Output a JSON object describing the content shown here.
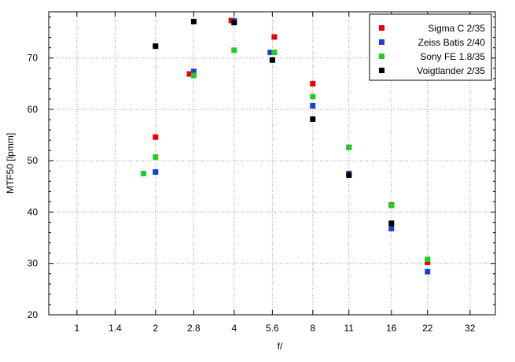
{
  "chart_data": {
    "type": "scatter",
    "title": "",
    "xlabel": "f/",
    "ylabel": "MTF50 [lpmm]",
    "x_scale": "log2",
    "xlim": [
      0.78,
      40
    ],
    "ylim": [
      20,
      79
    ],
    "x_ticks": [
      1,
      1.4,
      2,
      2.8,
      4,
      5.6,
      8,
      11,
      16,
      22,
      32
    ],
    "x_tick_labels": [
      "1",
      "1.4",
      "2",
      "2.8",
      "4",
      "5.6",
      "8",
      "11",
      "16",
      "22",
      "32"
    ],
    "y_ticks": [
      20,
      30,
      40,
      50,
      60,
      70
    ],
    "y_tick_labels": [
      "20",
      "30",
      "40",
      "50",
      "60",
      "70"
    ],
    "grid": true,
    "legend_position": "top-right",
    "series": [
      {
        "name": "Sigma C 2/35",
        "color": "#ee0000",
        "points": [
          [
            2,
            54.6
          ],
          [
            2.7,
            66.9
          ],
          [
            3.9,
            77.3
          ],
          [
            5.7,
            74.1
          ],
          [
            8,
            65.0
          ],
          [
            11,
            52.6
          ],
          [
            16,
            41.4
          ],
          [
            22,
            30.2
          ]
        ]
      },
      {
        "name": "Zeiss Batis 2/40",
        "color": "#1a3fd6",
        "points": [
          [
            2,
            47.8
          ],
          [
            2.8,
            67.4
          ],
          [
            4,
            77.2
          ],
          [
            5.5,
            71.1
          ],
          [
            8,
            60.7
          ],
          [
            11,
            47.5
          ],
          [
            16,
            36.8
          ],
          [
            22,
            28.4
          ]
        ]
      },
      {
        "name": "Sony FE 1.8/35",
        "color": "#22cc22",
        "points": [
          [
            1.8,
            47.5
          ],
          [
            2,
            50.7
          ],
          [
            2.8,
            66.6
          ],
          [
            4,
            71.5
          ],
          [
            5.7,
            71.1
          ],
          [
            8,
            62.5
          ],
          [
            11,
            52.6
          ],
          [
            16,
            41.3
          ],
          [
            22,
            30.8
          ]
        ]
      },
      {
        "name": "Voigtlander 2/35",
        "color": "#000000",
        "points": [
          [
            2,
            72.3
          ],
          [
            2.8,
            77.1
          ],
          [
            4,
            76.9
          ],
          [
            5.6,
            69.6
          ],
          [
            8,
            58.1
          ],
          [
            11,
            47.2
          ],
          [
            16,
            37.8
          ]
        ]
      }
    ]
  }
}
